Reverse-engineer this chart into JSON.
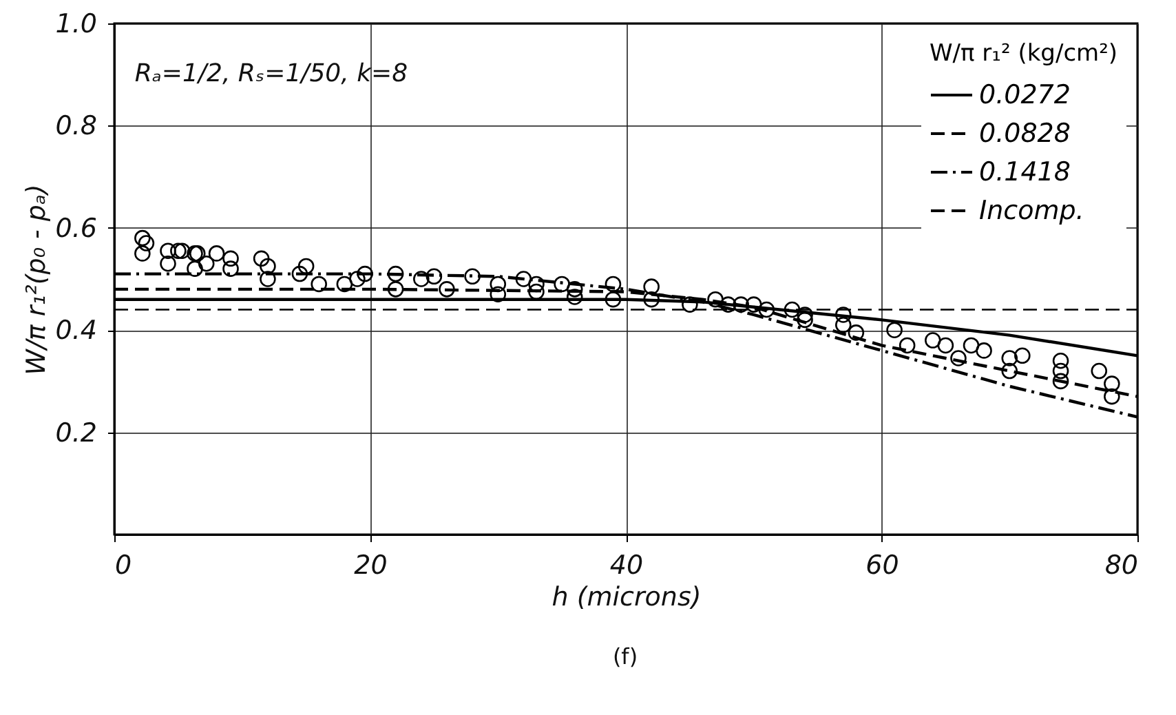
{
  "chart_data": {
    "type": "line",
    "xlabel": "h    (microns)",
    "ylabel": "W/π r₁²(p₀ - pₐ)",
    "legend_title": "W/π r₁² (kg/cm²)",
    "legend": "top right",
    "grid": true,
    "xlim": [
      0,
      80
    ],
    "xticks": [
      0,
      20,
      40,
      60,
      80
    ],
    "ylim": [
      0,
      1
    ],
    "yticks": [
      0.2,
      0.4,
      0.6,
      0.8,
      {
        "value": 1,
        "label": "1.0"
      }
    ],
    "annotations": [
      "Rₐ=1/2, Rₛ=1/50, k=8",
      "(f)"
    ],
    "series": [
      {
        "name": "0.0272",
        "color": "#000000",
        "line_style": "solid",
        "marker": "none",
        "x": [
          0,
          20,
          40,
          46,
          50,
          60,
          70,
          80
        ],
        "values": [
          0.46,
          0.46,
          0.46,
          0.455,
          0.445,
          0.42,
          0.39,
          0.35
        ]
      },
      {
        "name": "0.0828",
        "color": "#000000",
        "line_style": "dashed",
        "marker": "none",
        "x": [
          0,
          20,
          40,
          46,
          50,
          60,
          70,
          80
        ],
        "values": [
          0.48,
          0.48,
          0.475,
          0.46,
          0.445,
          0.37,
          0.32,
          0.27
        ]
      },
      {
        "name": "0.1418",
        "color": "#000000",
        "line_style": "dotted",
        "marker": "none",
        "x": [
          0,
          20,
          30,
          40,
          46,
          50,
          60,
          70,
          80
        ],
        "values": [
          0.51,
          0.51,
          0.505,
          0.48,
          0.455,
          0.43,
          0.36,
          0.29,
          0.23
        ]
      },
      {
        "name": "Incomp.",
        "color": "#000000",
        "line_style": "dashed",
        "marker": "none",
        "x": [
          0,
          80
        ],
        "values": [
          0.44,
          0.44
        ]
      },
      {
        "color": "#000000",
        "type": "scatter",
        "marker": "circle",
        "x": [
          2.5,
          5,
          6.5,
          8,
          11.5,
          14.5,
          19,
          24,
          30,
          33,
          36,
          39,
          42,
          47,
          50,
          54,
          57,
          65,
          68,
          71,
          74,
          77
        ],
        "values": [
          0.57,
          0.555,
          0.55,
          0.55,
          0.54,
          0.51,
          0.5,
          0.5,
          0.49,
          0.49,
          0.48,
          0.49,
          0.485,
          0.46,
          0.45,
          0.43,
          0.43,
          0.37,
          0.36,
          0.35,
          0.34,
          0.32
        ]
      },
      {
        "color": "#000000",
        "type": "scatter",
        "marker": "circle",
        "x": [
          2.2,
          4.2,
          6.3,
          7.2,
          9.1,
          12,
          16,
          18,
          22,
          26,
          30,
          33,
          36,
          39,
          49,
          53,
          57,
          61,
          64,
          67,
          70,
          74,
          78
        ],
        "values": [
          0.55,
          0.53,
          0.52,
          0.53,
          0.52,
          0.5,
          0.49,
          0.49,
          0.48,
          0.48,
          0.47,
          0.475,
          0.465,
          0.46,
          0.45,
          0.44,
          0.41,
          0.4,
          0.38,
          0.37,
          0.345,
          0.32,
          0.295
        ]
      },
      {
        "color": "#000000",
        "type": "scatter",
        "marker": "circle",
        "x": [
          2.2,
          4.2,
          5.3,
          6.3,
          9.1,
          12,
          15,
          19.6,
          22,
          25,
          28,
          32,
          35,
          42,
          45,
          48,
          51,
          54,
          58,
          62,
          66,
          70,
          74,
          78
        ],
        "values": [
          0.58,
          0.555,
          0.555,
          0.55,
          0.54,
          0.525,
          0.525,
          0.51,
          0.51,
          0.505,
          0.505,
          0.5,
          0.49,
          0.46,
          0.45,
          0.45,
          0.44,
          0.42,
          0.395,
          0.37,
          0.345,
          0.32,
          0.3,
          0.27
        ]
      }
    ]
  }
}
